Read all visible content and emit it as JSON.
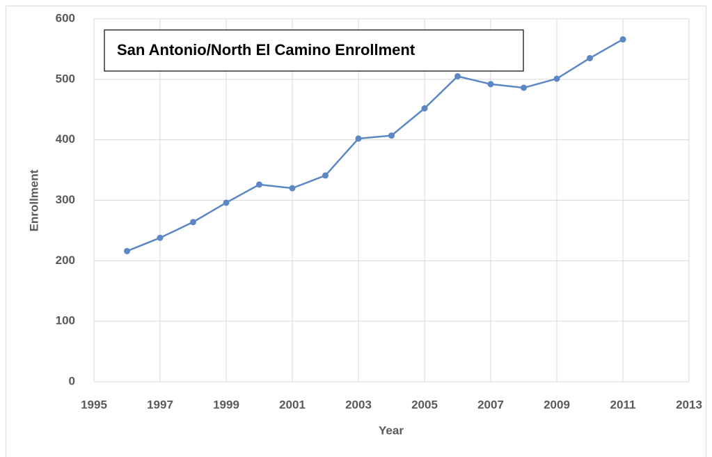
{
  "chart_data": {
    "type": "line",
    "title": "San Antonio/North El Camino Enrollment",
    "x_label": "Year",
    "y_label": "Enrollment",
    "x": [
      1996,
      1997,
      1998,
      1999,
      2000,
      2001,
      2002,
      2003,
      2004,
      2005,
      2006,
      2007,
      2008,
      2009,
      2010,
      2011
    ],
    "values": [
      216,
      238,
      264,
      296,
      326,
      320,
      341,
      402,
      407,
      452,
      505,
      492,
      486,
      501,
      535,
      566
    ],
    "color": "#5b87c5",
    "xlim": [
      1995,
      2013
    ],
    "xticks": [
      1995,
      1997,
      1999,
      2001,
      2003,
      2005,
      2007,
      2009,
      2011,
      2013
    ],
    "ylim": [
      0,
      600
    ],
    "yticks": [
      0,
      100,
      200,
      300,
      400,
      500,
      600
    ],
    "grid": true
  }
}
